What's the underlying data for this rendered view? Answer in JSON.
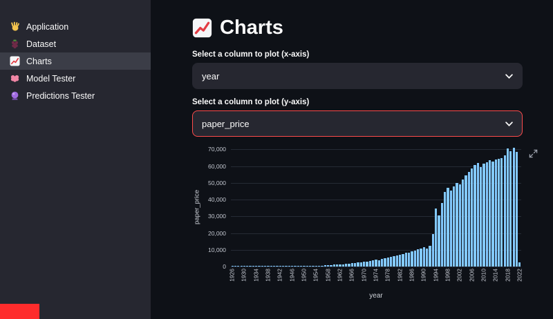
{
  "sidebar": {
    "items": [
      {
        "label": "Application",
        "icon": "waving-hand-icon",
        "selected": false
      },
      {
        "label": "Dataset",
        "icon": "grapes-icon",
        "selected": false
      },
      {
        "label": "Charts",
        "icon": "chart-increasing-icon",
        "selected": true
      },
      {
        "label": "Model Tester",
        "icon": "brain-icon",
        "selected": false
      },
      {
        "label": "Predictions Tester",
        "icon": "crystal-ball-icon",
        "selected": false
      }
    ]
  },
  "main": {
    "title": "Charts",
    "title_icon": "chart-increasing-icon",
    "x_select": {
      "label": "Select a column to plot (x-axis)",
      "value": "year",
      "focused": false
    },
    "y_select": {
      "label": "Select a column to plot (y-axis)",
      "value": "paper_price",
      "focused": true
    }
  },
  "icons": {
    "select_dropdown": "chevron-down-icon",
    "chart_expand": "fullscreen-icon"
  },
  "colors": {
    "app_background": "#0e1117",
    "sidebar_background": "#262730",
    "selected_item_background": "#3b3d47",
    "accent_red": "#ff4b4b",
    "bar_fill": "#83c9ff",
    "text": "#fafafa",
    "corner_badge_red": "#fe2c2c"
  },
  "chart_data": {
    "type": "bar",
    "title": "",
    "xlabel": "year",
    "ylabel": "paper_price",
    "ylim": [
      0,
      71000
    ],
    "yticks": [
      0,
      10000,
      20000,
      30000,
      40000,
      50000,
      60000,
      70000
    ],
    "xtick_interval": 4,
    "grid": true,
    "legend": false,
    "x": [
      1926,
      1927,
      1928,
      1929,
      1930,
      1931,
      1932,
      1933,
      1934,
      1935,
      1936,
      1937,
      1938,
      1939,
      1940,
      1941,
      1942,
      1943,
      1944,
      1945,
      1946,
      1947,
      1948,
      1949,
      1950,
      1951,
      1952,
      1953,
      1954,
      1955,
      1956,
      1957,
      1958,
      1959,
      1960,
      1961,
      1962,
      1963,
      1964,
      1965,
      1966,
      1967,
      1968,
      1969,
      1970,
      1971,
      1972,
      1973,
      1974,
      1975,
      1976,
      1977,
      1978,
      1979,
      1980,
      1981,
      1982,
      1983,
      1984,
      1985,
      1986,
      1987,
      1988,
      1989,
      1990,
      1991,
      1992,
      1993,
      1994,
      1995,
      1996,
      1997,
      1998,
      1999,
      2000,
      2001,
      2002,
      2003,
      2004,
      2005,
      2006,
      2007,
      2008,
      2009,
      2010,
      2011,
      2012,
      2013,
      2014,
      2015,
      2016,
      2017,
      2018,
      2019,
      2020,
      2021,
      2022
    ],
    "values": [
      120,
      125,
      130,
      135,
      130,
      120,
      110,
      115,
      125,
      135,
      145,
      155,
      160,
      170,
      180,
      195,
      210,
      225,
      240,
      255,
      280,
      310,
      340,
      360,
      385,
      420,
      445,
      470,
      500,
      540,
      580,
      640,
      900,
      980,
      1080,
      1180,
      1300,
      1420,
      1560,
      1720,
      1900,
      2080,
      2280,
      2500,
      2750,
      2950,
      3250,
      3600,
      4100,
      3900,
      4500,
      4900,
      5300,
      5800,
      6400,
      6800,
      7100,
      7500,
      8100,
      8400,
      8900,
      9500,
      10200,
      10800,
      11400,
      10900,
      12400,
      19500,
      34500,
      30500,
      38000,
      44500,
      47000,
      45500,
      48000,
      50000,
      49000,
      52000,
      54500,
      56500,
      58500,
      60500,
      62000,
      59500,
      61500,
      62500,
      63500,
      62800,
      63800,
      64300,
      65000,
      66500,
      70500,
      69000,
      71000,
      68500,
      2600
    ]
  }
}
